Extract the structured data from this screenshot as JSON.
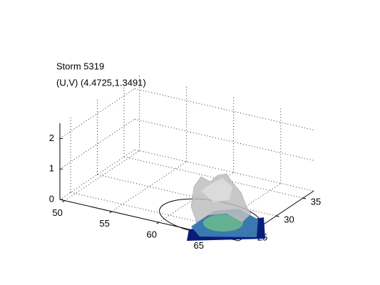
{
  "chart_data": {
    "type": "surface3d",
    "title": "Storm 5319",
    "subtitle": "(U,V) (4.4725,1.3491)",
    "xlim": [
      49.5,
      68.5
    ],
    "xticks": [
      50,
      55,
      60,
      65
    ],
    "ylim": [
      23,
      37
    ],
    "yticks": [
      25,
      30,
      35
    ],
    "zlim": [
      0,
      2.5
    ],
    "zticks": [
      0,
      1,
      2
    ],
    "grid": true
  }
}
